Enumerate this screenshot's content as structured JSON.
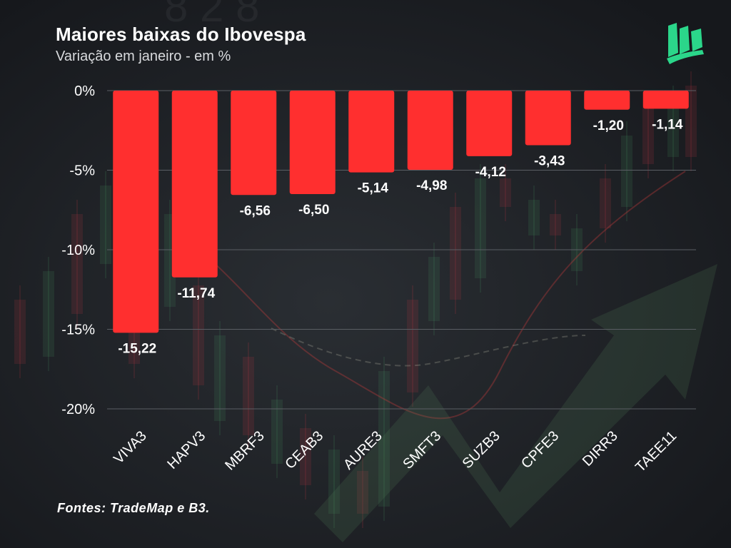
{
  "header": {
    "title": "Maiores baixas do Ibovespa",
    "subtitle": "Variação em janeiro - em %"
  },
  "logo": {
    "icon": "leaf-book-logo-icon",
    "color": "#2bd68a"
  },
  "footer": {
    "source": "Fontes: TradeMap e B3."
  },
  "colors": {
    "bar": "#ff2f2f",
    "text": "#ffffff",
    "grid": "#5a5e64"
  },
  "chart_data": {
    "type": "bar",
    "title": "Maiores baixas do Ibovespa",
    "subtitle": "Variação em janeiro - em %",
    "xlabel": "",
    "ylabel": "",
    "categories": [
      "VIVA3",
      "HAPV3",
      "MBRF3",
      "CEAB3",
      "AURE3",
      "SMFT3",
      "SUZB3",
      "CPFE3",
      "DIRR3",
      "TAEE11"
    ],
    "values": [
      -15.22,
      -11.74,
      -6.56,
      -6.5,
      -5.14,
      -4.98,
      -4.12,
      -3.43,
      -1.2,
      -1.14
    ],
    "value_labels": [
      "-15,22",
      "-11,74",
      "-6,56",
      "-6,50",
      "-5,14",
      "-4,98",
      "-4,12",
      "-3,43",
      "-1,20",
      "-1,14"
    ],
    "ylim": [
      -20,
      0
    ],
    "yticks": [
      0,
      -5,
      -10,
      -15,
      -20
    ],
    "ytick_labels": [
      "0%",
      "-5%",
      "-10%",
      "-15%",
      "-20%"
    ],
    "grid": true
  }
}
